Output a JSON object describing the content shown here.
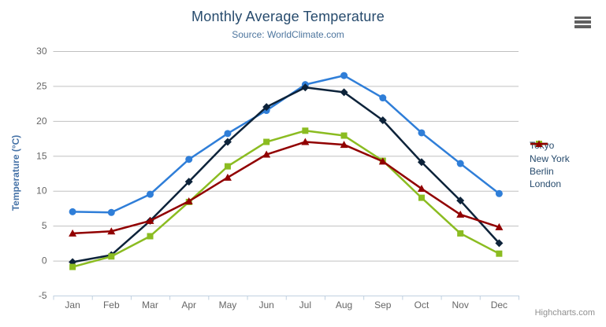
{
  "header": {
    "title": "Monthly Average Temperature",
    "subtitle": "Source: WorldClimate.com"
  },
  "credits_label": "Highcharts.com",
  "export_menu_icon": "hamburger-menu-icon",
  "colors": {
    "title": "#274b6d",
    "subtitle": "#4d759e",
    "axis_labels": "#666666",
    "y_axis_title": "#4572a7",
    "gridline": "#c0c0c0",
    "x_axis_line": "#c0d0e0",
    "legend_text": "#274b6d",
    "credits_text": "#909090"
  },
  "chart_data": {
    "type": "line",
    "title": "Monthly Average Temperature",
    "subtitle": "Source: WorldClimate.com",
    "xlabel": "",
    "ylabel": "Temperature (°C)",
    "ylim": [
      -5,
      30
    ],
    "yticks": [
      -5,
      0,
      5,
      10,
      15,
      20,
      25,
      30
    ],
    "grid": true,
    "legend_position": "right",
    "categories": [
      "Jan",
      "Feb",
      "Mar",
      "Apr",
      "May",
      "Jun",
      "Jul",
      "Aug",
      "Sep",
      "Oct",
      "Nov",
      "Dec"
    ],
    "series": [
      {
        "name": "Tokyo",
        "color": "#2f7ed8",
        "marker": "circle",
        "values": [
          7.0,
          6.9,
          9.5,
          14.5,
          18.2,
          21.5,
          25.2,
          26.5,
          23.3,
          18.3,
          13.9,
          9.6
        ]
      },
      {
        "name": "New York",
        "color": "#0d233a",
        "marker": "diamond",
        "values": [
          -0.2,
          0.8,
          5.7,
          11.3,
          17.0,
          22.0,
          24.8,
          24.1,
          20.1,
          14.1,
          8.6,
          2.5
        ]
      },
      {
        "name": "Berlin",
        "color": "#8bbc21",
        "marker": "square",
        "values": [
          -0.9,
          0.6,
          3.5,
          8.4,
          13.5,
          17.0,
          18.6,
          17.9,
          14.3,
          9.0,
          3.9,
          1.0
        ]
      },
      {
        "name": "London",
        "color": "#910000",
        "marker": "triangle",
        "values": [
          3.9,
          4.2,
          5.7,
          8.5,
          11.9,
          15.2,
          17.0,
          16.6,
          14.2,
          10.3,
          6.6,
          4.8
        ]
      }
    ]
  }
}
